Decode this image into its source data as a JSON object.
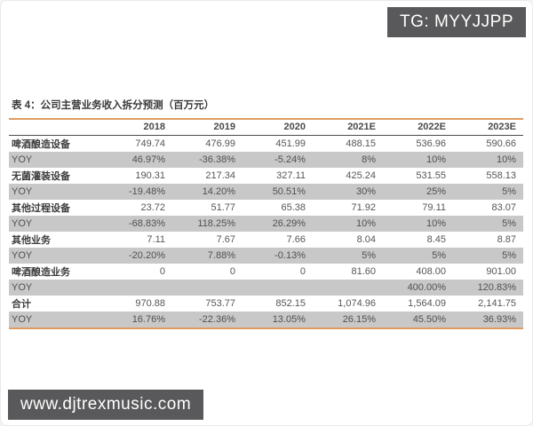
{
  "page": {
    "tg_badge": "TG: MYYJJPP",
    "watermark": "www.djtrexmusic.com"
  },
  "table": {
    "title": "表 4：公司主营业务收入拆分预测（百万元）",
    "columns": [
      "2018",
      "2019",
      "2020",
      "2021E",
      "2022E",
      "2023E"
    ],
    "rows": [
      {
        "label": "啤酒酿造设备",
        "type": "category",
        "shaded": false,
        "values": [
          "749.74",
          "476.99",
          "451.99",
          "488.15",
          "536.96",
          "590.66"
        ]
      },
      {
        "label": "YOY",
        "type": "yoy",
        "shaded": true,
        "values": [
          "46.97%",
          "-36.38%",
          "-5.24%",
          "8%",
          "10%",
          "10%"
        ]
      },
      {
        "label": "无菌灌装设备",
        "type": "category",
        "shaded": false,
        "values": [
          "190.31",
          "217.34",
          "327.11",
          "425.24",
          "531.55",
          "558.13"
        ]
      },
      {
        "label": "YOY",
        "type": "yoy",
        "shaded": true,
        "values": [
          "-19.48%",
          "14.20%",
          "50.51%",
          "30%",
          "25%",
          "5%"
        ]
      },
      {
        "label": "其他过程设备",
        "type": "category",
        "shaded": false,
        "values": [
          "23.72",
          "51.77",
          "65.38",
          "71.92",
          "79.11",
          "83.07"
        ]
      },
      {
        "label": "YOY",
        "type": "yoy",
        "shaded": true,
        "values": [
          "-68.83%",
          "118.25%",
          "26.29%",
          "10%",
          "10%",
          "5%"
        ]
      },
      {
        "label": "其他业务",
        "type": "category",
        "shaded": false,
        "values": [
          "7.11",
          "7.67",
          "7.66",
          "8.04",
          "8.45",
          "8.87"
        ]
      },
      {
        "label": "YOY",
        "type": "yoy",
        "shaded": true,
        "values": [
          "-20.20%",
          "7.88%",
          "-0.13%",
          "5%",
          "5%",
          "5%"
        ]
      },
      {
        "label": "啤酒酿造业务",
        "type": "category",
        "shaded": false,
        "values": [
          "0",
          "0",
          "0",
          "81.60",
          "408.00",
          "901.00"
        ]
      },
      {
        "label": "YOY",
        "type": "yoy",
        "shaded": true,
        "values": [
          "",
          "",
          "",
          "",
          "400.00%",
          "120.83%"
        ]
      },
      {
        "label": "合计",
        "type": "category",
        "shaded": false,
        "values": [
          "970.88",
          "753.77",
          "852.15",
          "1,074.96",
          "1,564.09",
          "2,141.75"
        ]
      },
      {
        "label": "YOY",
        "type": "yoy",
        "shaded": true,
        "values": [
          "16.76%",
          "-22.36%",
          "13.05%",
          "26.15%",
          "45.50%",
          "36.93%"
        ]
      }
    ]
  }
}
